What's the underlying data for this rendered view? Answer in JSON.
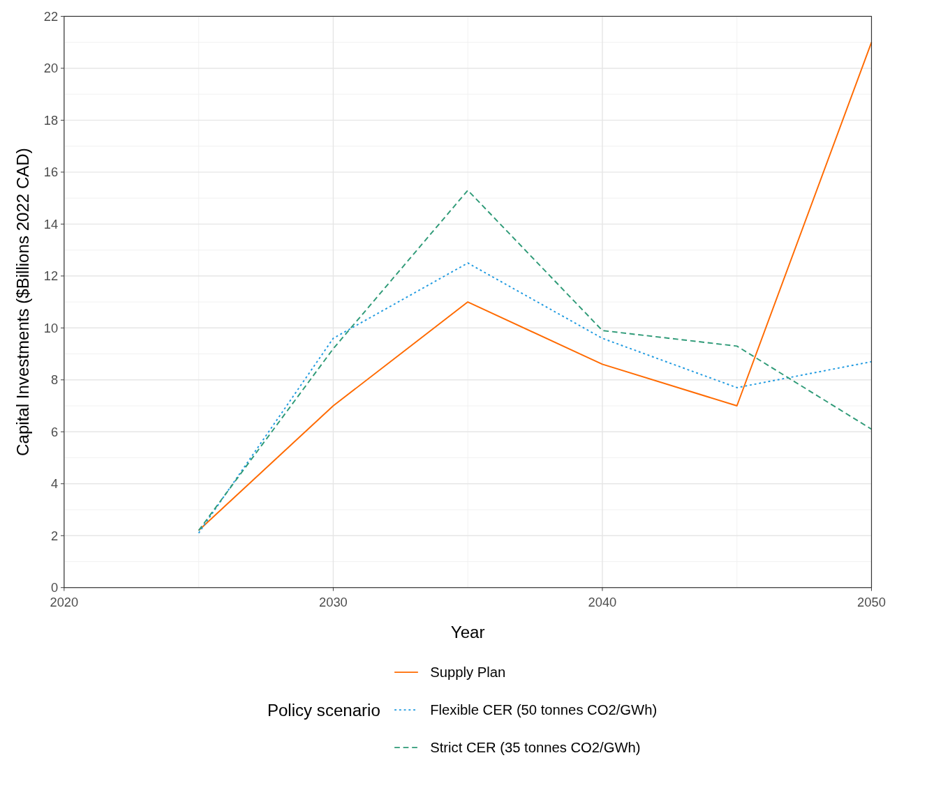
{
  "chart_data": {
    "type": "line",
    "xlabel": "Year",
    "ylabel": "Capital Investments ($Billions 2022 CAD)",
    "legend_title": "Policy scenario",
    "legend": "bottom",
    "grid": true,
    "x": [
      2025,
      2030,
      2035,
      2040,
      2045,
      2050
    ],
    "xlim": [
      2020,
      2050
    ],
    "xticks": [
      2020,
      2030,
      2040,
      2050
    ],
    "ylim": [
      0,
      22
    ],
    "yticks": [
      0,
      2,
      4,
      6,
      8,
      10,
      12,
      14,
      16,
      18,
      20,
      22
    ],
    "series": [
      {
        "name": "Supply Plan",
        "color": "#ff6a00",
        "line_style": "solid",
        "values": [
          2.2,
          7.0,
          11.0,
          8.6,
          7.0,
          21.0
        ]
      },
      {
        "name": "Flexible CER (50 tonnes CO2/GWh)",
        "color": "#1f9ae0",
        "line_style": "dotted",
        "values": [
          2.1,
          9.6,
          12.5,
          9.6,
          7.7,
          8.7
        ]
      },
      {
        "name": "Strict CER (35 tonnes CO2/GWh)",
        "color": "#2e9a77",
        "line_style": "dashed",
        "values": [
          2.2,
          9.2,
          15.3,
          9.9,
          9.3,
          6.1
        ]
      }
    ]
  }
}
